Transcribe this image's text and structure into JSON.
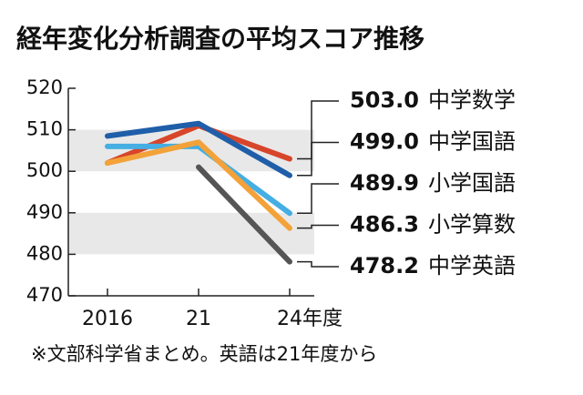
{
  "chart_data": {
    "type": "line",
    "title": "経年変化分析調査の平均スコア推移",
    "note": "※文部科学省まとめ。英語は21年度から",
    "categories": [
      "2016",
      "21",
      "24年度"
    ],
    "ylim": [
      470,
      520
    ],
    "yticks": [
      470,
      480,
      490,
      500,
      510,
      520
    ],
    "shaded_bands": [
      [
        500,
        510
      ],
      [
        480,
        490
      ]
    ],
    "series": [
      {
        "name": "中学数学",
        "color": "#d7452a",
        "values": [
          502,
          511,
          503.0
        ],
        "value_labels": [
          null,
          null,
          "503.0"
        ]
      },
      {
        "name": "中学国語",
        "color": "#1f5ea8",
        "values": [
          508.5,
          511.5,
          499.0
        ],
        "value_labels": [
          null,
          null,
          "499.0"
        ]
      },
      {
        "name": "小学国語",
        "color": "#45aee2",
        "values": [
          506,
          506,
          489.9
        ],
        "value_labels": [
          null,
          null,
          "489.9"
        ]
      },
      {
        "name": "小学算数",
        "color": "#f3a23a",
        "values": [
          502,
          507,
          486.3
        ],
        "value_labels": [
          null,
          null,
          "486.3"
        ]
      },
      {
        "name": "中学英語",
        "color": "#555555",
        "values": [
          null,
          501,
          478.2
        ],
        "value_labels": [
          null,
          null,
          "478.2"
        ]
      }
    ]
  }
}
